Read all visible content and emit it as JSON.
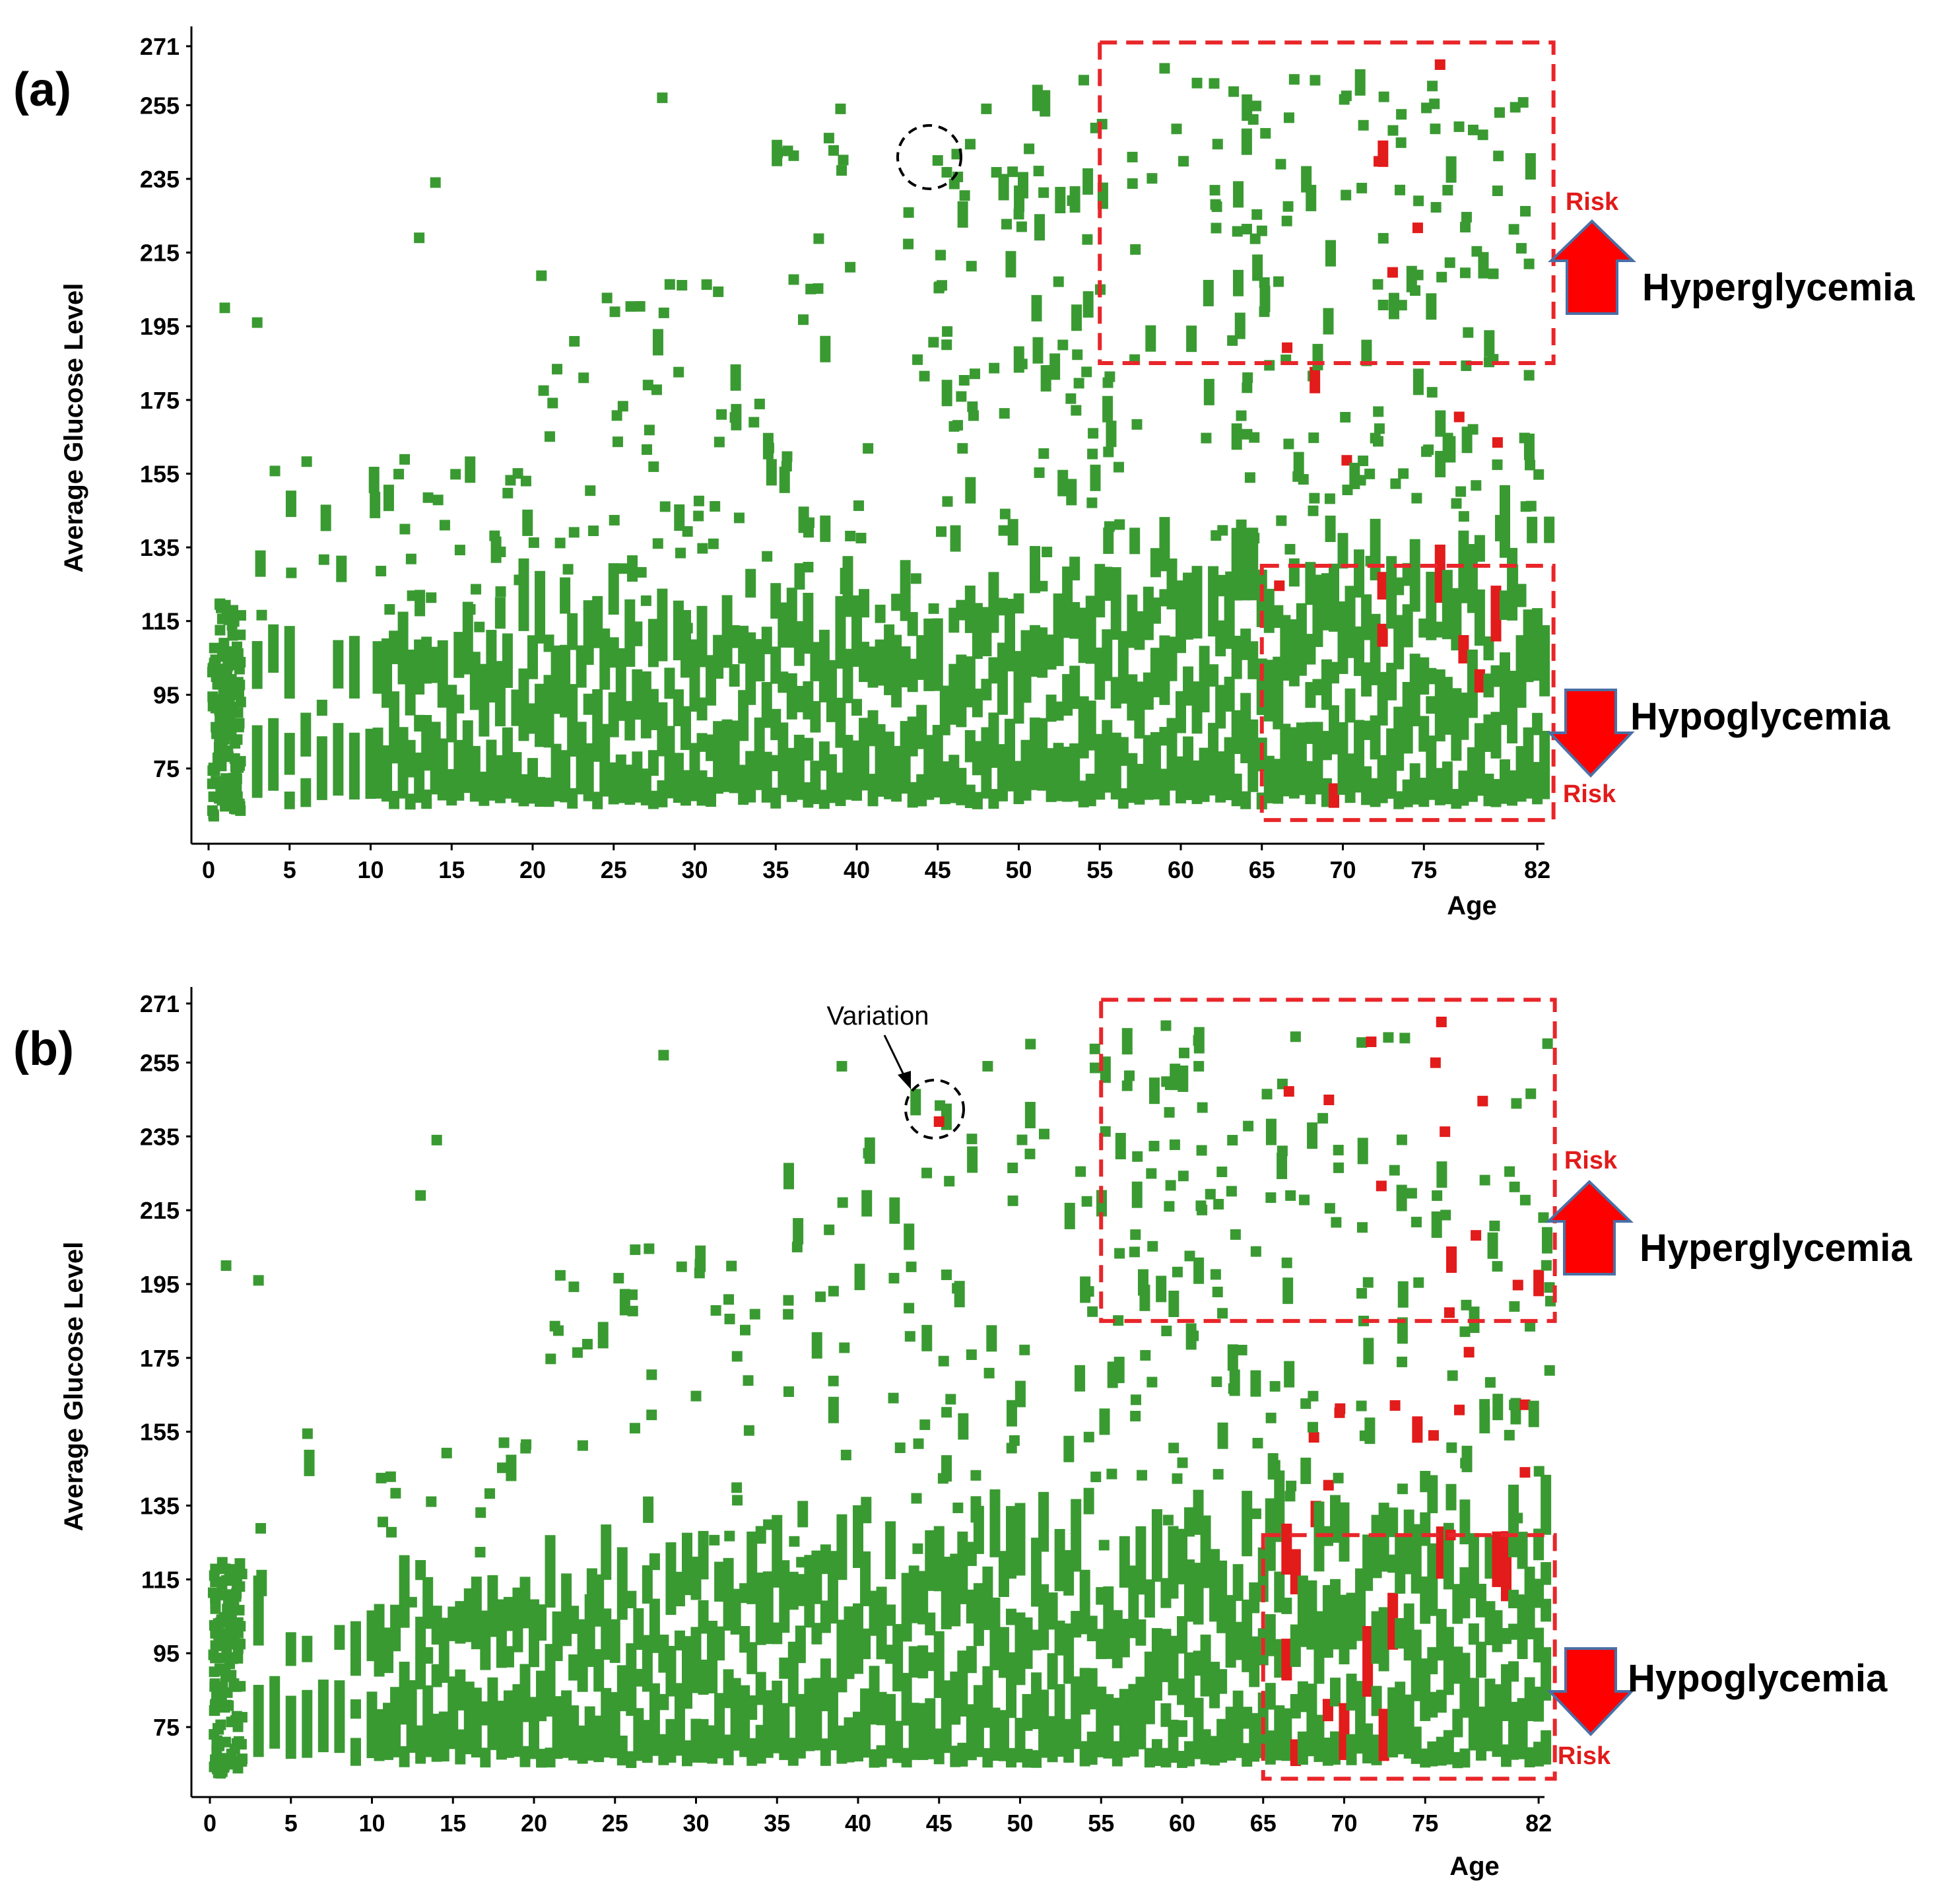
{
  "colors": {
    "normal": "#3a9a32",
    "risk": "#e21b1b",
    "box": "#e8262a",
    "arrow_outline": "#4a6fa5",
    "arrow_fill": "#ff0000"
  },
  "labels": {
    "hyper": "Hyperglycemia",
    "hypo": "Hypoglycemia",
    "risk": "Risk",
    "variation": "Variation"
  },
  "chart_data": [
    {
      "type": "scatter",
      "panel_label": "(a)",
      "xlabel": "Age",
      "ylabel": "Average Glucose Level",
      "xlim": [
        -1,
        83
      ],
      "ylim": [
        61,
        273
      ],
      "xticks": [
        0,
        5,
        10,
        15,
        20,
        25,
        30,
        35,
        40,
        45,
        50,
        55,
        60,
        65,
        70,
        75,
        82
      ],
      "yticks": [
        75,
        95,
        115,
        135,
        155,
        175,
        195,
        215,
        235,
        255,
        271
      ],
      "series": [
        {
          "name": "normal",
          "description": "Dense green markers: ages 0-82, glucose mostly 61-130 with sparse high values up to ~265"
        },
        {
          "name": "risk",
          "description": "Red markers concentrated at ages 65-82 in both high and low glucose bands"
        }
      ],
      "regions": [
        {
          "name": "hyperglycemia-risk",
          "age": [
            55,
            83
          ],
          "glucose": [
            185,
            272
          ]
        },
        {
          "name": "hypoglycemia-risk",
          "age": [
            65,
            83
          ],
          "glucose": [
            61,
            130
          ]
        }
      ],
      "highlight": {
        "age": 45,
        "glucose": 240,
        "color": "normal"
      }
    },
    {
      "type": "scatter",
      "panel_label": "(b)",
      "xlabel": "Age",
      "ylabel": "Average Glucose Level",
      "xlim": [
        -1,
        83
      ],
      "ylim": [
        61,
        273
      ],
      "xticks": [
        0,
        5,
        10,
        15,
        20,
        25,
        30,
        35,
        40,
        45,
        50,
        55,
        60,
        65,
        70,
        75,
        82
      ],
      "yticks": [
        75,
        95,
        115,
        135,
        155,
        175,
        195,
        215,
        235,
        255,
        271
      ],
      "series": [
        {
          "name": "normal",
          "description": "Dense green markers: ages 0-82, glucose mostly 61-130 with sparse high values up to ~265"
        },
        {
          "name": "risk",
          "description": "Red markers concentrated at ages 65-82; more risk markers than panel (a)"
        }
      ],
      "regions": [
        {
          "name": "hyperglycemia-risk",
          "age": [
            55,
            83
          ],
          "glucose": [
            185,
            272
          ]
        },
        {
          "name": "hypoglycemia-risk",
          "age": [
            65,
            83
          ],
          "glucose": [
            61,
            127
          ]
        }
      ],
      "highlight": {
        "age": 45,
        "glucose": 239,
        "color": "risk",
        "annotation": "Variation"
      }
    }
  ]
}
